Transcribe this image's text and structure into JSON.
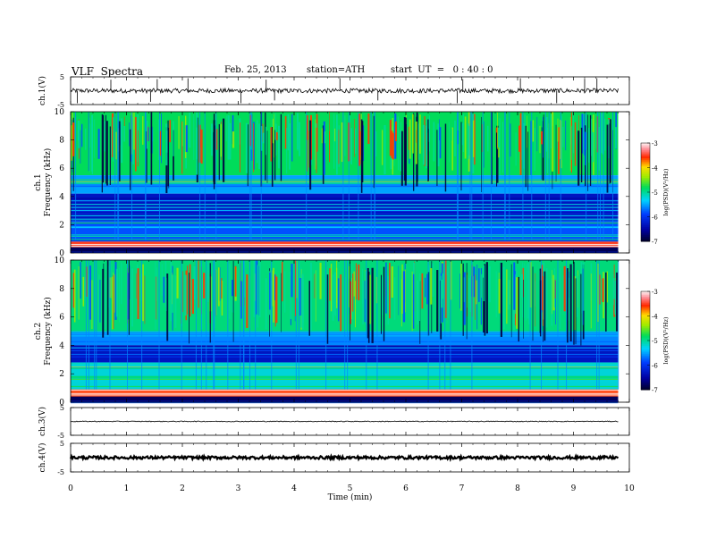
{
  "header": {
    "title": "VLF  Spectra",
    "date": "Feb. 25, 2013",
    "station": "station=ATH",
    "start": "start  UT  =   0 : 40 : 0"
  },
  "chart_data": [
    {
      "type": "line",
      "panel": "ch1-waveform",
      "ylabel": "ch.1(V)",
      "ylim": [
        -5,
        5
      ],
      "yticks": [
        "5",
        "-5"
      ],
      "xlim": [
        0,
        10
      ],
      "data_range_x": [
        0,
        9.8
      ],
      "baseline": 0,
      "noise_amplitude": 0.8,
      "spikes": [
        {
          "x": 0.12,
          "y": -4.5
        },
        {
          "x": 0.72,
          "y": 4.0
        },
        {
          "x": 1.43,
          "y": -4.0
        },
        {
          "x": 1.55,
          "y": 4.2
        },
        {
          "x": 2.1,
          "y": 4.5
        },
        {
          "x": 3.05,
          "y": -4.5
        },
        {
          "x": 3.5,
          "y": 4.0
        },
        {
          "x": 3.65,
          "y": -3.5
        },
        {
          "x": 4.82,
          "y": 4.5
        },
        {
          "x": 5.5,
          "y": -3.5
        },
        {
          "x": 6.92,
          "y": -4.5
        },
        {
          "x": 7.02,
          "y": 4.2
        },
        {
          "x": 8.05,
          "y": 4.5
        },
        {
          "x": 8.7,
          "y": -4.5
        },
        {
          "x": 9.2,
          "y": 4.3
        },
        {
          "x": 9.42,
          "y": 4.5
        }
      ]
    },
    {
      "type": "heatmap",
      "panel": "ch1-spectrogram",
      "ylabel": "ch.1",
      "ylabel2": "Frequency  (kHz)",
      "ylim": [
        0,
        10
      ],
      "yticks": [
        "0",
        "2",
        "4",
        "6",
        "8",
        "10"
      ],
      "xlim": [
        0,
        10
      ],
      "data_range_x": [
        0,
        9.8
      ],
      "colorbar": {
        "label": "log(PSD)(V²/Hz)",
        "range": [
          -7,
          -3
        ],
        "ticks": [
          "-3",
          "-4",
          "-5",
          "-6",
          "-7"
        ]
      },
      "bands": [
        {
          "f_range": [
            5.5,
            10
          ],
          "log_psd": -4.8,
          "note": "broadband sferics, green-yellow with red bursts"
        },
        {
          "f_range": [
            4.2,
            5.5
          ],
          "log_psd": -5.5,
          "note": "cyan-green transition"
        },
        {
          "f_range": [
            2.2,
            4.2
          ],
          "log_psd": -6.3,
          "note": "blue with cyan horizontal lines"
        },
        {
          "f_range": [
            0.8,
            2.2
          ],
          "log_psd": -5.8,
          "note": "mixed cyan/green lines"
        },
        {
          "f_range": [
            0.4,
            0.8
          ],
          "log_psd": -3.5,
          "note": "red interference lines"
        },
        {
          "f_range": [
            0,
            0.4
          ],
          "log_psd": -6.8,
          "note": "dark"
        }
      ]
    },
    {
      "type": "heatmap",
      "panel": "ch2-spectrogram",
      "ylabel": "ch.2",
      "ylabel2": "Frequency  (kHz)",
      "ylim": [
        0,
        10
      ],
      "yticks": [
        "0",
        "2",
        "4",
        "6",
        "8",
        "10"
      ],
      "xlim": [
        0,
        10
      ],
      "data_range_x": [
        0,
        9.8
      ],
      "colorbar": {
        "label": "log(PSD)(V²/Hz)",
        "range": [
          -7,
          -3
        ],
        "ticks": [
          "-3",
          "-4",
          "-5",
          "-6",
          "-7"
        ]
      },
      "bands": [
        {
          "f_range": [
            5.0,
            10
          ],
          "log_psd": -4.9,
          "note": "broadband sferics, green-yellow"
        },
        {
          "f_range": [
            4.0,
            5.0
          ],
          "log_psd": -5.6,
          "note": "cyan-green"
        },
        {
          "f_range": [
            2.8,
            4.0
          ],
          "log_psd": -6.3,
          "note": "blue with cyan lines"
        },
        {
          "f_range": [
            0.9,
            2.8
          ],
          "log_psd": -5.2,
          "note": "green/yellow lines"
        },
        {
          "f_range": [
            0.4,
            0.9
          ],
          "log_psd": -3.6,
          "note": "red interference lines"
        },
        {
          "f_range": [
            0,
            0.4
          ],
          "log_psd": -6.8,
          "note": "dark"
        }
      ]
    },
    {
      "type": "line",
      "panel": "ch3-waveform",
      "ylabel": "ch.3(V)",
      "ylim": [
        -5,
        5
      ],
      "yticks": [
        "5",
        "-5"
      ],
      "xlim": [
        0,
        10
      ],
      "data_range_x": [
        0,
        9.8
      ],
      "baseline": 0,
      "noise_amplitude": 0.15
    },
    {
      "type": "line",
      "panel": "ch4-waveform",
      "ylabel": "ch.4(V)",
      "ylim": [
        -5,
        5
      ],
      "yticks": [
        "5",
        "-5"
      ],
      "xlim": [
        0,
        10
      ],
      "data_range_x": [
        0,
        9.8
      ],
      "baseline": 0,
      "noise_amplitude": 0.5,
      "xlabel": "Time  (min)",
      "xticks": [
        "0",
        "1",
        "2",
        "3",
        "4",
        "5",
        "6",
        "7",
        "8",
        "9",
        "10"
      ]
    }
  ]
}
